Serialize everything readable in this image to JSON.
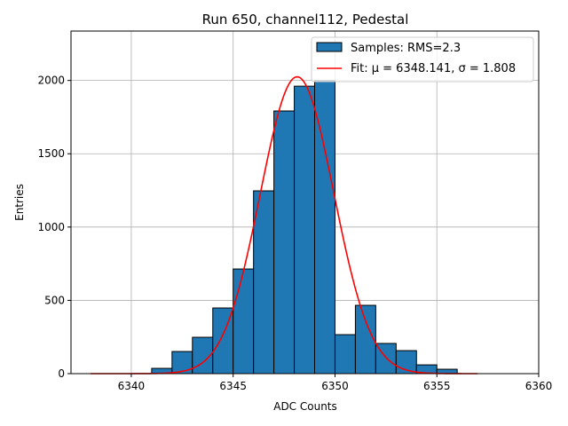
{
  "chart_data": {
    "type": "bar",
    "title": "Run 650, channel112, Pedestal",
    "xlabel": "ADC Counts",
    "ylabel": "Entries",
    "xlim": [
      6337.04,
      6360
    ],
    "ylim": [
      0,
      2337
    ],
    "xticks": [
      6340,
      6345,
      6350,
      6355,
      6360
    ],
    "yticks": [
      0,
      500,
      1000,
      1500,
      2000
    ],
    "grid": true,
    "legend_position": "top-right",
    "bin_edges": [
      6341,
      6342,
      6343,
      6344,
      6345,
      6346,
      6347,
      6348,
      6349,
      6350,
      6351,
      6352,
      6353,
      6354,
      6355,
      6356
    ],
    "values": [
      36,
      151,
      248,
      448,
      714,
      1247,
      1792,
      1961,
      2000,
      266,
      466,
      206,
      157,
      60,
      30
    ],
    "bar_color": "#1f77b4",
    "fit": {
      "mu": 6348.141,
      "sigma": 1.808,
      "amplitude": 2025,
      "range": [
        6338,
        6357
      ],
      "color": "#ff0000"
    },
    "legend": [
      {
        "label": "Samples: RMS=2.3"
      },
      {
        "label": "Fit: μ = 6348.141, σ = 1.808"
      }
    ]
  }
}
